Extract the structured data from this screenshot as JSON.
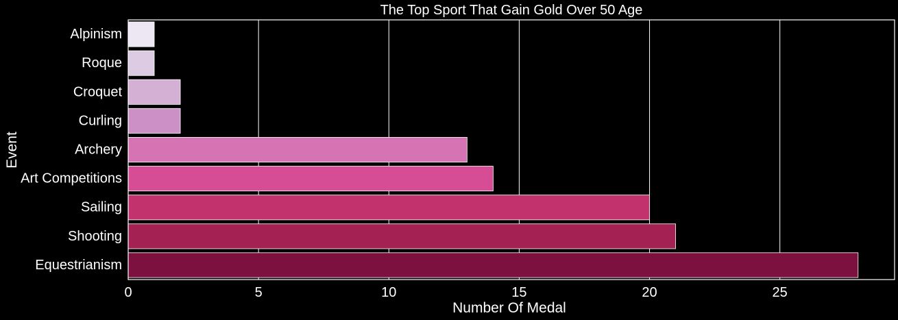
{
  "chart_data": {
    "type": "bar",
    "orientation": "horizontal",
    "title": "The Top Sport That Gain Gold Over 50 Age",
    "xlabel": "Number Of Medal",
    "ylabel": "Event",
    "categories": [
      "Alpinism",
      "Roque",
      "Croquet",
      "Curling",
      "Archery",
      "Art Competitions",
      "Sailing",
      "Shooting",
      "Equestrianism"
    ],
    "values": [
      1,
      1,
      2,
      2,
      13,
      14,
      20,
      21,
      28
    ],
    "colors": [
      "#ece7f2",
      "#dccbe2",
      "#d3b0d4",
      "#cc90c6",
      "#d573b3",
      "#d64c95",
      "#c2336e",
      "#a42154",
      "#7c1140"
    ],
    "xlim": [
      0,
      29.4
    ],
    "xticks": [
      "0",
      "5",
      "10",
      "15",
      "20",
      "25"
    ],
    "grid": true,
    "legend": "none"
  }
}
